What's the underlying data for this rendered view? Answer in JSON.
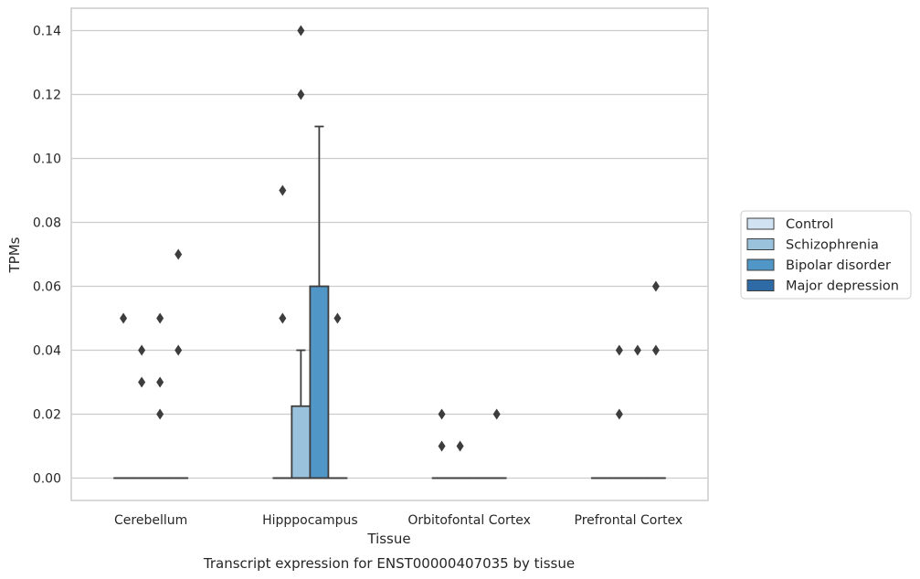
{
  "chart_data": {
    "type": "box",
    "caption": "Transcript expression for ENST00000407035 by tissue",
    "xlabel": "Tissue",
    "ylabel": "TPMs",
    "ylim": [
      -0.007,
      0.147
    ],
    "yticks": [
      0.0,
      0.02,
      0.04,
      0.06,
      0.08,
      0.1,
      0.12,
      0.14
    ],
    "ytick_labels": [
      "0.00",
      "0.02",
      "0.04",
      "0.06",
      "0.08",
      "0.10",
      "0.12",
      "0.14"
    ],
    "grid": "horizontal",
    "legend_position": "right",
    "categories": [
      "Cerebellum",
      "Hipppocampus",
      "Orbitofontal Cortex",
      "Prefrontal Cortex"
    ],
    "series": [
      {
        "name": "Control",
        "color": "#d1e2f2",
        "boxes": [
          {
            "min": 0,
            "q1": 0,
            "median": 0,
            "q3": 0,
            "max": 0,
            "outliers": [
              0.05
            ]
          },
          {
            "min": 0,
            "q1": 0,
            "median": 0,
            "q3": 0,
            "max": 0,
            "outliers": [
              0.09,
              0.05
            ]
          },
          {
            "min": 0,
            "q1": 0,
            "median": 0,
            "q3": 0,
            "max": 0,
            "outliers": [
              0.02,
              0.01
            ]
          },
          {
            "min": 0,
            "q1": 0,
            "median": 0,
            "q3": 0,
            "max": 0,
            "outliers": []
          }
        ]
      },
      {
        "name": "Schizophrenia",
        "color": "#9ac2dc",
        "boxes": [
          {
            "min": 0,
            "q1": 0,
            "median": 0,
            "q3": 0,
            "max": 0,
            "outliers": [
              0.04,
              0.03
            ]
          },
          {
            "min": 0,
            "q1": 0,
            "median": 0,
            "q3": 0.0225,
            "max": 0.04,
            "outliers": [
              0.14,
              0.12
            ]
          },
          {
            "min": 0,
            "q1": 0,
            "median": 0,
            "q3": 0,
            "max": 0,
            "outliers": [
              0.01
            ]
          },
          {
            "min": 0,
            "q1": 0,
            "median": 0,
            "q3": 0,
            "max": 0,
            "outliers": [
              0.04,
              0.02
            ]
          }
        ]
      },
      {
        "name": "Bipolar disorder",
        "color": "#5096c6",
        "boxes": [
          {
            "min": 0,
            "q1": 0,
            "median": 0,
            "q3": 0,
            "max": 0,
            "outliers": [
              0.05,
              0.03,
              0.02
            ]
          },
          {
            "min": 0,
            "q1": 0,
            "median": 0,
            "q3": 0.06,
            "max": 0.11,
            "outliers": []
          },
          {
            "min": 0,
            "q1": 0,
            "median": 0,
            "q3": 0,
            "max": 0,
            "outliers": []
          },
          {
            "min": 0,
            "q1": 0,
            "median": 0,
            "q3": 0,
            "max": 0,
            "outliers": [
              0.04
            ]
          }
        ]
      },
      {
        "name": "Major depression",
        "color": "#2d6aa6",
        "boxes": [
          {
            "min": 0,
            "q1": 0,
            "median": 0,
            "q3": 0,
            "max": 0,
            "outliers": [
              0.07,
              0.04
            ]
          },
          {
            "min": 0,
            "q1": 0,
            "median": 0,
            "q3": 0,
            "max": 0,
            "outliers": [
              0.05
            ]
          },
          {
            "min": 0,
            "q1": 0,
            "median": 0,
            "q3": 0,
            "max": 0,
            "outliers": [
              0.02
            ]
          },
          {
            "min": 0,
            "q1": 0,
            "median": 0,
            "q3": 0,
            "max": 0,
            "outliers": [
              0.06,
              0.04
            ]
          }
        ]
      }
    ]
  }
}
